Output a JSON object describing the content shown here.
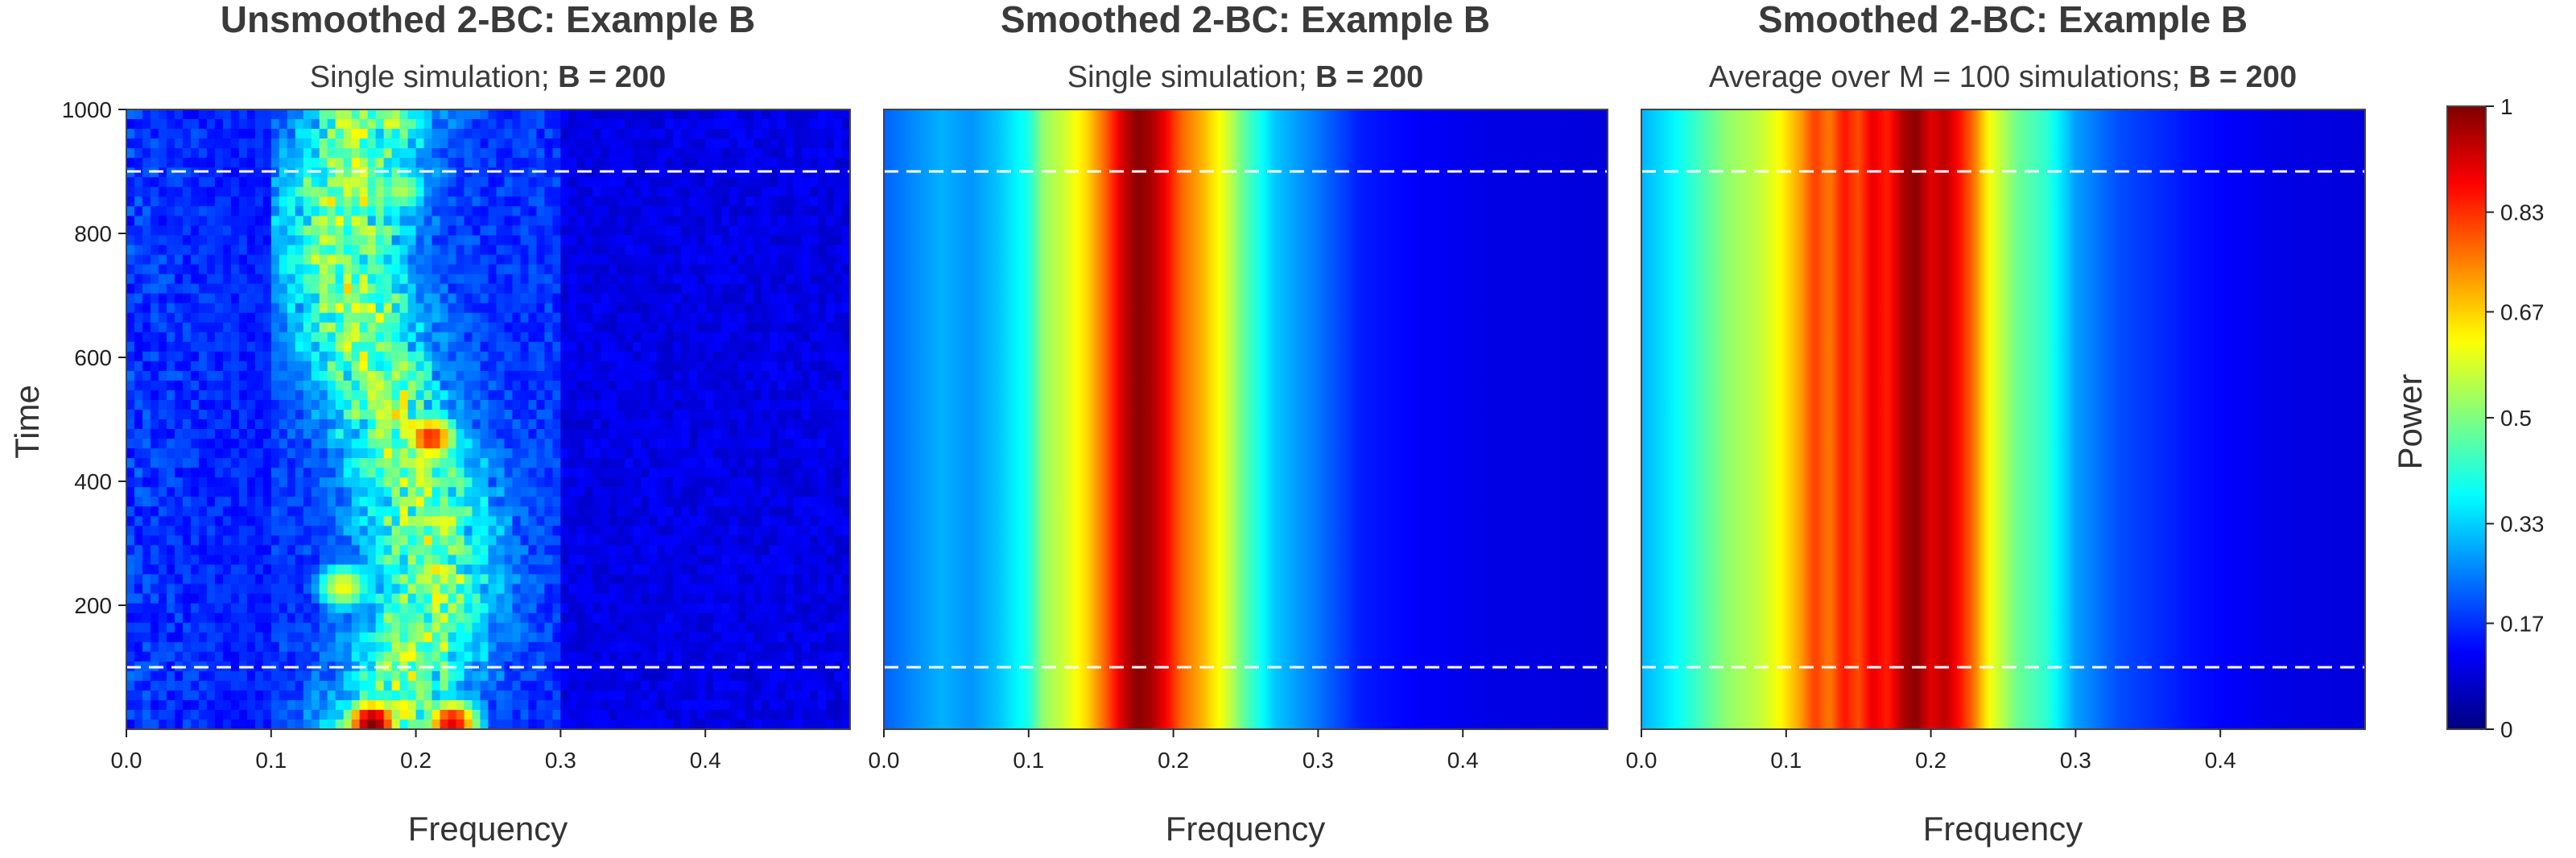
{
  "chart_data": [
    {
      "type": "heatmap",
      "title": "Unsmoothed 2-BC: Example B",
      "subtitle": {
        "prefix": "Single simulation; ",
        "bold": "B = 200"
      },
      "xlabel": "Frequency",
      "ylabel": "Time",
      "xlim": [
        0,
        0.5
      ],
      "ylim": [
        0,
        1000
      ],
      "xticks": [
        "0.0",
        "0.1",
        "0.2",
        "0.3",
        "0.4"
      ],
      "yticks": [
        "200",
        "400",
        "600",
        "800",
        "1000"
      ],
      "dashed_lines_time": [
        100,
        900
      ],
      "pattern": "noisy",
      "peak_frequency": 0.2,
      "hotspots": [
        {
          "frequency": 0.21,
          "time": 470,
          "power": 0.85
        },
        {
          "frequency": 0.15,
          "time": 230,
          "power": 0.62
        },
        {
          "frequency": 0.19,
          "time": 870,
          "power": 0.55
        },
        {
          "frequency": 0.17,
          "time": 10,
          "power": 1.0
        },
        {
          "frequency": 0.225,
          "time": 10,
          "power": 0.9
        }
      ]
    },
    {
      "type": "heatmap",
      "title": "Smoothed 2-BC: Example B",
      "subtitle": {
        "prefix": "Single simulation; ",
        "bold": "B = 200"
      },
      "xlabel": "Frequency",
      "ylabel": "",
      "xlim": [
        0,
        0.5
      ],
      "ylim": [
        0,
        1000
      ],
      "xticks": [
        "0.0",
        "0.1",
        "0.2",
        "0.3",
        "0.4"
      ],
      "dashed_lines_time": [
        100,
        900
      ],
      "pattern": "vertical-bands",
      "frequency_power_profile": [
        [
          0.0,
          0.22
        ],
        [
          0.02,
          0.26
        ],
        [
          0.04,
          0.3
        ],
        [
          0.06,
          0.27
        ],
        [
          0.08,
          0.32
        ],
        [
          0.1,
          0.4
        ],
        [
          0.11,
          0.52
        ],
        [
          0.125,
          0.58
        ],
        [
          0.14,
          0.66
        ],
        [
          0.155,
          0.8
        ],
        [
          0.165,
          0.92
        ],
        [
          0.175,
          0.99
        ],
        [
          0.185,
          0.96
        ],
        [
          0.195,
          0.88
        ],
        [
          0.205,
          0.78
        ],
        [
          0.22,
          0.7
        ],
        [
          0.235,
          0.6
        ],
        [
          0.25,
          0.46
        ],
        [
          0.27,
          0.32
        ],
        [
          0.3,
          0.24
        ],
        [
          0.33,
          0.15
        ],
        [
          0.37,
          0.12
        ],
        [
          0.42,
          0.1
        ],
        [
          0.5,
          0.09
        ]
      ]
    },
    {
      "type": "heatmap",
      "title": "Smoothed 2-BC: Example B",
      "subtitle": {
        "prefix": "Average over M = 100 simulations; ",
        "bold": "B = 200"
      },
      "xlabel": "Frequency",
      "ylabel": "",
      "xlim": [
        0,
        0.5
      ],
      "ylim": [
        0,
        1000
      ],
      "xticks": [
        "0.0",
        "0.1",
        "0.2",
        "0.3",
        "0.4"
      ],
      "dashed_lines_time": [
        100,
        900
      ],
      "pattern": "vertical-bands",
      "frequency_power_profile": [
        [
          0.0,
          0.3
        ],
        [
          0.02,
          0.36
        ],
        [
          0.04,
          0.44
        ],
        [
          0.06,
          0.52
        ],
        [
          0.08,
          0.56
        ],
        [
          0.095,
          0.62
        ],
        [
          0.11,
          0.72
        ],
        [
          0.12,
          0.82
        ],
        [
          0.13,
          0.75
        ],
        [
          0.14,
          0.86
        ],
        [
          0.15,
          0.8
        ],
        [
          0.16,
          0.9
        ],
        [
          0.17,
          0.84
        ],
        [
          0.18,
          0.95
        ],
        [
          0.19,
          0.99
        ],
        [
          0.2,
          0.9
        ],
        [
          0.21,
          0.94
        ],
        [
          0.22,
          0.86
        ],
        [
          0.23,
          0.76
        ],
        [
          0.24,
          0.62
        ],
        [
          0.26,
          0.48
        ],
        [
          0.28,
          0.42
        ],
        [
          0.3,
          0.28
        ],
        [
          0.33,
          0.2
        ],
        [
          0.38,
          0.14
        ],
        [
          0.44,
          0.1
        ],
        [
          0.5,
          0.09
        ]
      ]
    }
  ],
  "colorbar": {
    "label": "Power",
    "range": [
      0,
      1
    ],
    "ticks": [
      {
        "value": 1,
        "label": "1"
      },
      {
        "value": 0.83,
        "label": "0.83"
      },
      {
        "value": 0.67,
        "label": "0.67"
      },
      {
        "value": 0.5,
        "label": "0.5"
      },
      {
        "value": 0.33,
        "label": "0.33"
      },
      {
        "value": 0.17,
        "label": "0.17"
      },
      {
        "value": 0,
        "label": "0"
      }
    ]
  }
}
